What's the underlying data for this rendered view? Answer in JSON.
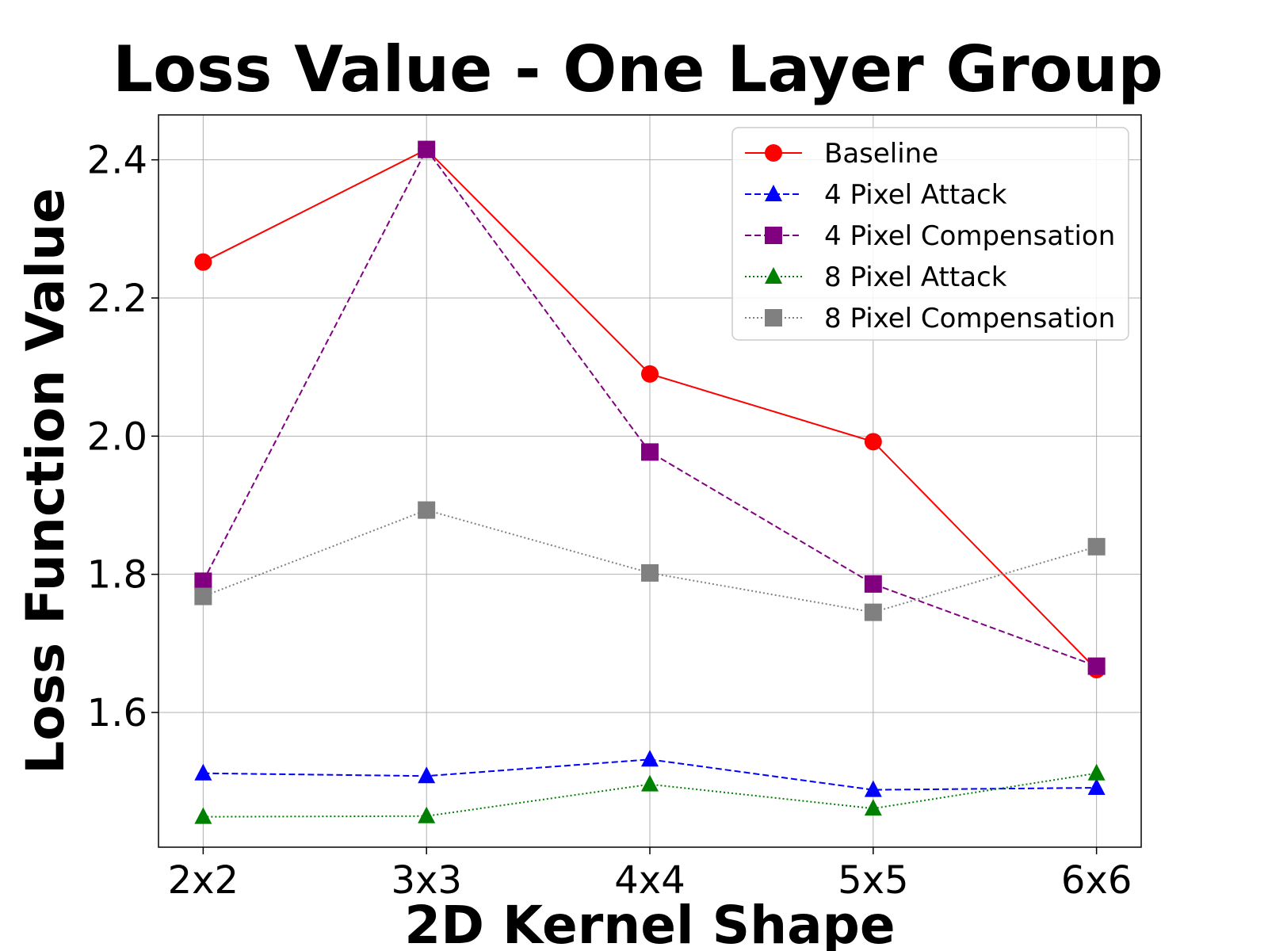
{
  "chart_data": {
    "type": "line",
    "title": "Loss Value - One Layer Group",
    "xlabel": "2D Kernel Shape",
    "ylabel": "Loss Function Value",
    "categories": [
      "2x2",
      "3x3",
      "4x4",
      "5x5",
      "6x6"
    ],
    "yticks": [
      "1.6",
      "1.8",
      "2.0",
      "2.2",
      "2.4"
    ],
    "ylim": [
      1.405,
      2.465
    ],
    "grid": true,
    "legend_position": "top-right",
    "series": [
      {
        "name": "Baseline",
        "values": [
          2.252,
          2.415,
          2.09,
          1.992,
          1.662
        ],
        "color": "#ff0000",
        "marker": "circle",
        "dash": "solid"
      },
      {
        "name": "4 Pixel Attack",
        "values": [
          1.512,
          1.508,
          1.532,
          1.488,
          1.491
        ],
        "color": "#0000ff",
        "marker": "triangle",
        "dash": "dashed"
      },
      {
        "name": "4 Pixel Compensation",
        "values": [
          1.79,
          2.415,
          1.977,
          1.786,
          1.667
        ],
        "color": "#800080",
        "marker": "square",
        "dash": "dashed"
      },
      {
        "name": "8 Pixel Attack",
        "values": [
          1.449,
          1.45,
          1.496,
          1.461,
          1.512
        ],
        "color": "#008000",
        "marker": "triangle",
        "dash": "dotted"
      },
      {
        "name": "8 Pixel Compensation",
        "values": [
          1.768,
          1.893,
          1.802,
          1.745,
          1.84
        ],
        "color": "#808080",
        "marker": "square",
        "dash": "dotted"
      }
    ]
  }
}
